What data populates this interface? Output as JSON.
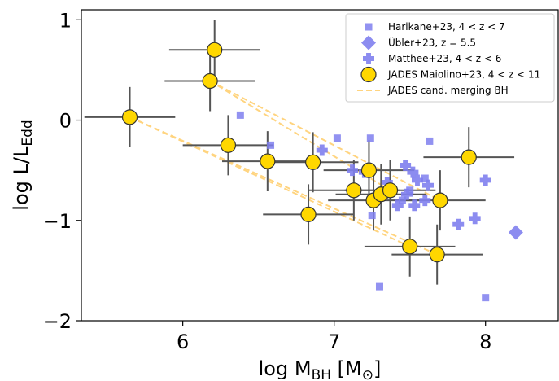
{
  "chart_data": {
    "type": "scatter",
    "xlabel": "log M_BH  [M_⊙]",
    "ylabel": "log L/L_Edd",
    "xlim": [
      5.33,
      8.48
    ],
    "ylim": [
      -2.0,
      1.1
    ],
    "xticks": [
      6,
      7,
      8
    ],
    "yticks": [
      1,
      0,
      -1,
      -2
    ],
    "xtick_labels": [
      "6",
      "7",
      "8"
    ],
    "ytick_labels": [
      "1",
      "0",
      "−1",
      "−2"
    ],
    "grid": false,
    "legend_position": "top-right",
    "legend": [
      {
        "key": "harikane",
        "label": "Harikane+23, 4 < z < 7"
      },
      {
        "key": "ubler",
        "label": "Übler+23, z = 5.5"
      },
      {
        "key": "matthee",
        "label": "Matthee+23, 4 < z < 6"
      },
      {
        "key": "jades",
        "label": "JADES Maiolino+23, 4 < z < 11"
      },
      {
        "key": "merging",
        "label": "JADES cand. merging BH"
      }
    ],
    "series": [
      {
        "key": "harikane",
        "marker": "square",
        "color": "#7f7fee",
        "points": [
          [
            6.38,
            0.05
          ],
          [
            6.58,
            -0.25
          ],
          [
            7.02,
            -0.18
          ],
          [
            7.24,
            -0.18
          ],
          [
            7.63,
            -0.21
          ],
          [
            7.6,
            -0.58
          ],
          [
            7.5,
            -0.7
          ],
          [
            7.45,
            -0.8
          ],
          [
            7.25,
            -0.95
          ],
          [
            7.3,
            -1.66
          ],
          [
            8.0,
            -1.77
          ]
        ]
      },
      {
        "key": "ubler",
        "marker": "diamond",
        "color": "#7f7fee",
        "points": [
          [
            8.2,
            -1.12
          ]
        ]
      },
      {
        "key": "matthee",
        "marker": "plus",
        "color": "#7f7fee",
        "points": [
          [
            6.92,
            -0.3
          ],
          [
            7.12,
            -0.5
          ],
          [
            7.2,
            -0.52
          ],
          [
            7.47,
            -0.45
          ],
          [
            7.52,
            -0.52
          ],
          [
            7.55,
            -0.6
          ],
          [
            7.48,
            -0.74
          ],
          [
            7.42,
            -0.85
          ],
          [
            7.53,
            -0.85
          ],
          [
            7.6,
            -0.8
          ],
          [
            7.35,
            -0.62
          ],
          [
            7.62,
            -0.65
          ],
          [
            7.82,
            -1.04
          ],
          [
            7.93,
            -0.98
          ],
          [
            8.0,
            -0.6
          ]
        ]
      },
      {
        "key": "jades",
        "marker": "circle",
        "color": "#ffd700",
        "edge": "#333333",
        "points": [
          {
            "x": 5.65,
            "y": 0.03,
            "xerr": [
              0.3,
              0.3
            ],
            "yerr": [
              0.3,
              0.3
            ]
          },
          {
            "x": 6.18,
            "y": 0.39,
            "xerr": [
              0.3,
              0.3
            ],
            "yerr": [
              0.3,
              0.3
            ]
          },
          {
            "x": 6.21,
            "y": 0.7,
            "xerr": [
              0.3,
              0.3
            ],
            "yerr": [
              0.3,
              0.3
            ]
          },
          {
            "x": 6.3,
            "y": -0.25,
            "xerr": [
              0.3,
              0.3
            ],
            "yerr": [
              0.3,
              0.3
            ]
          },
          {
            "x": 6.56,
            "y": -0.41,
            "xerr": [
              0.3,
              0.3
            ],
            "yerr": [
              0.3,
              0.3
            ]
          },
          {
            "x": 6.86,
            "y": -0.42,
            "xerr": [
              0.3,
              0.3
            ],
            "yerr": [
              0.3,
              0.3
            ]
          },
          {
            "x": 6.83,
            "y": -0.94,
            "xerr": [
              0.3,
              0.3
            ],
            "yerr": [
              0.3,
              0.3
            ]
          },
          {
            "x": 7.13,
            "y": -0.7,
            "xerr": [
              0.3,
              0.3
            ],
            "yerr": [
              0.3,
              0.3
            ]
          },
          {
            "x": 7.23,
            "y": -0.5,
            "xerr": [
              0.3,
              0.3
            ],
            "yerr": [
              0.3,
              0.3
            ]
          },
          {
            "x": 7.26,
            "y": -0.8,
            "xerr": [
              0.3,
              0.3
            ],
            "yerr": [
              0.3,
              0.3
            ]
          },
          {
            "x": 7.31,
            "y": -0.74,
            "xerr": [
              0.3,
              0.3
            ],
            "yerr": [
              0.3,
              0.3
            ]
          },
          {
            "x": 7.37,
            "y": -0.7,
            "xerr": [
              0.3,
              0.3
            ],
            "yerr": [
              0.3,
              0.3
            ]
          },
          {
            "x": 7.5,
            "y": -1.26,
            "xerr": [
              0.3,
              0.3
            ],
            "yerr": [
              0.3,
              0.3
            ]
          },
          {
            "x": 7.7,
            "y": -0.8,
            "xerr": [
              0.3,
              0.3
            ],
            "yerr": [
              0.3,
              0.3
            ]
          },
          {
            "x": 7.68,
            "y": -1.34,
            "xerr": [
              0.3,
              0.3
            ],
            "yerr": [
              0.3,
              0.3
            ]
          },
          {
            "x": 7.89,
            "y": -0.37,
            "xerr": [
              0.3,
              0.3
            ],
            "yerr": [
              0.3,
              0.3
            ]
          }
        ]
      }
    ],
    "merging_lines": {
      "key": "merging",
      "color": "#ffd47f",
      "segments": [
        [
          [
            5.65,
            0.03
          ],
          [
            7.5,
            -1.26
          ]
        ],
        [
          [
            5.65,
            0.03
          ],
          [
            7.68,
            -1.34
          ]
        ],
        [
          [
            6.18,
            0.39
          ],
          [
            7.37,
            -0.7
          ]
        ],
        [
          [
            6.18,
            0.39
          ],
          [
            7.7,
            -0.8
          ]
        ]
      ]
    }
  }
}
